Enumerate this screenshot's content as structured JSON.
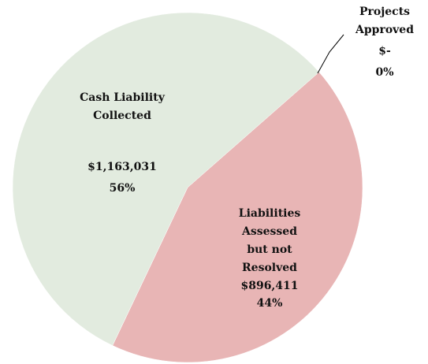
{
  "chart_data": {
    "type": "pie",
    "categories": [
      "Projects Approved",
      "Liabilities Assessed but not Resolved",
      "Cash Liability Collected"
    ],
    "values": [
      0,
      896411,
      1163031
    ],
    "value_labels": [
      "$-",
      "$896,411",
      "$1,163,031"
    ],
    "percents": [
      0,
      44,
      56
    ],
    "percent_labels": [
      "0%",
      "44%",
      "56%"
    ],
    "colors": [
      "#9aa35a",
      "#e8b5b5",
      "#e2ebdf"
    ]
  }
}
